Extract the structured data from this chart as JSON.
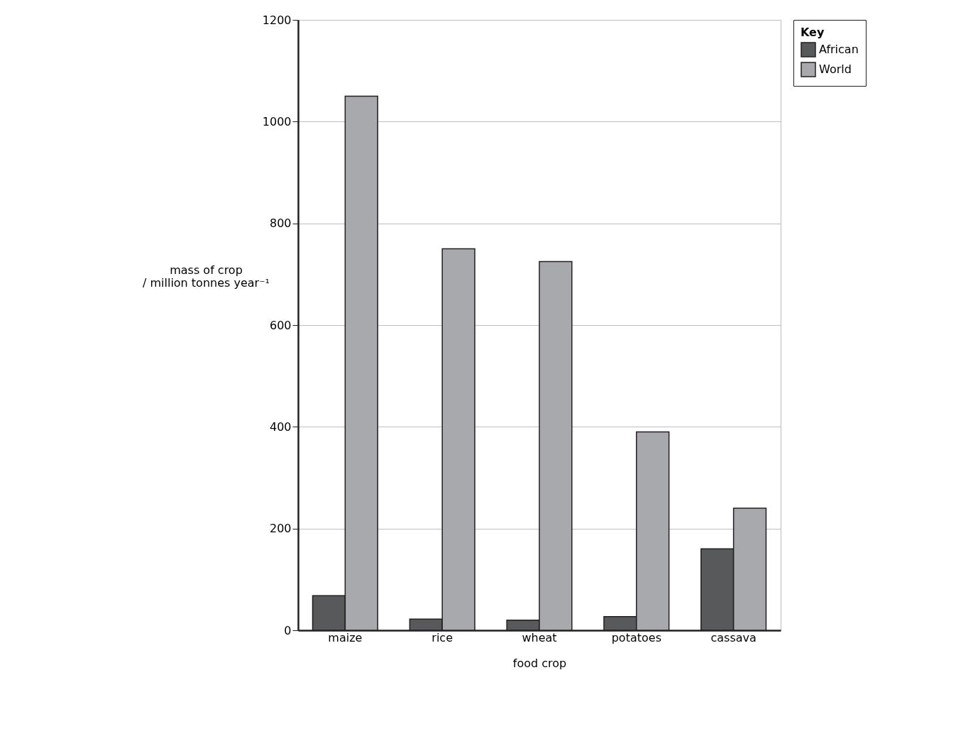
{
  "chart_data": {
    "type": "bar",
    "xlabel": "food crop",
    "ylabel": "mass of crop\n/ million tonnes year⁻¹",
    "legend_title": "Key",
    "categories": [
      "maize",
      "rice",
      "wheat",
      "potatoes",
      "cassava"
    ],
    "series": [
      {
        "name": "African",
        "color": "#58595b",
        "values": [
          68,
          22,
          20,
          27,
          160
        ]
      },
      {
        "name": "World",
        "color": "#a7a9ac",
        "values": [
          1050,
          750,
          725,
          390,
          240
        ]
      }
    ],
    "ylim": [
      0,
      1200
    ],
    "yticks": [
      0,
      200,
      400,
      600,
      800,
      1000,
      1200
    ],
    "grid": "y",
    "legend": "right"
  }
}
